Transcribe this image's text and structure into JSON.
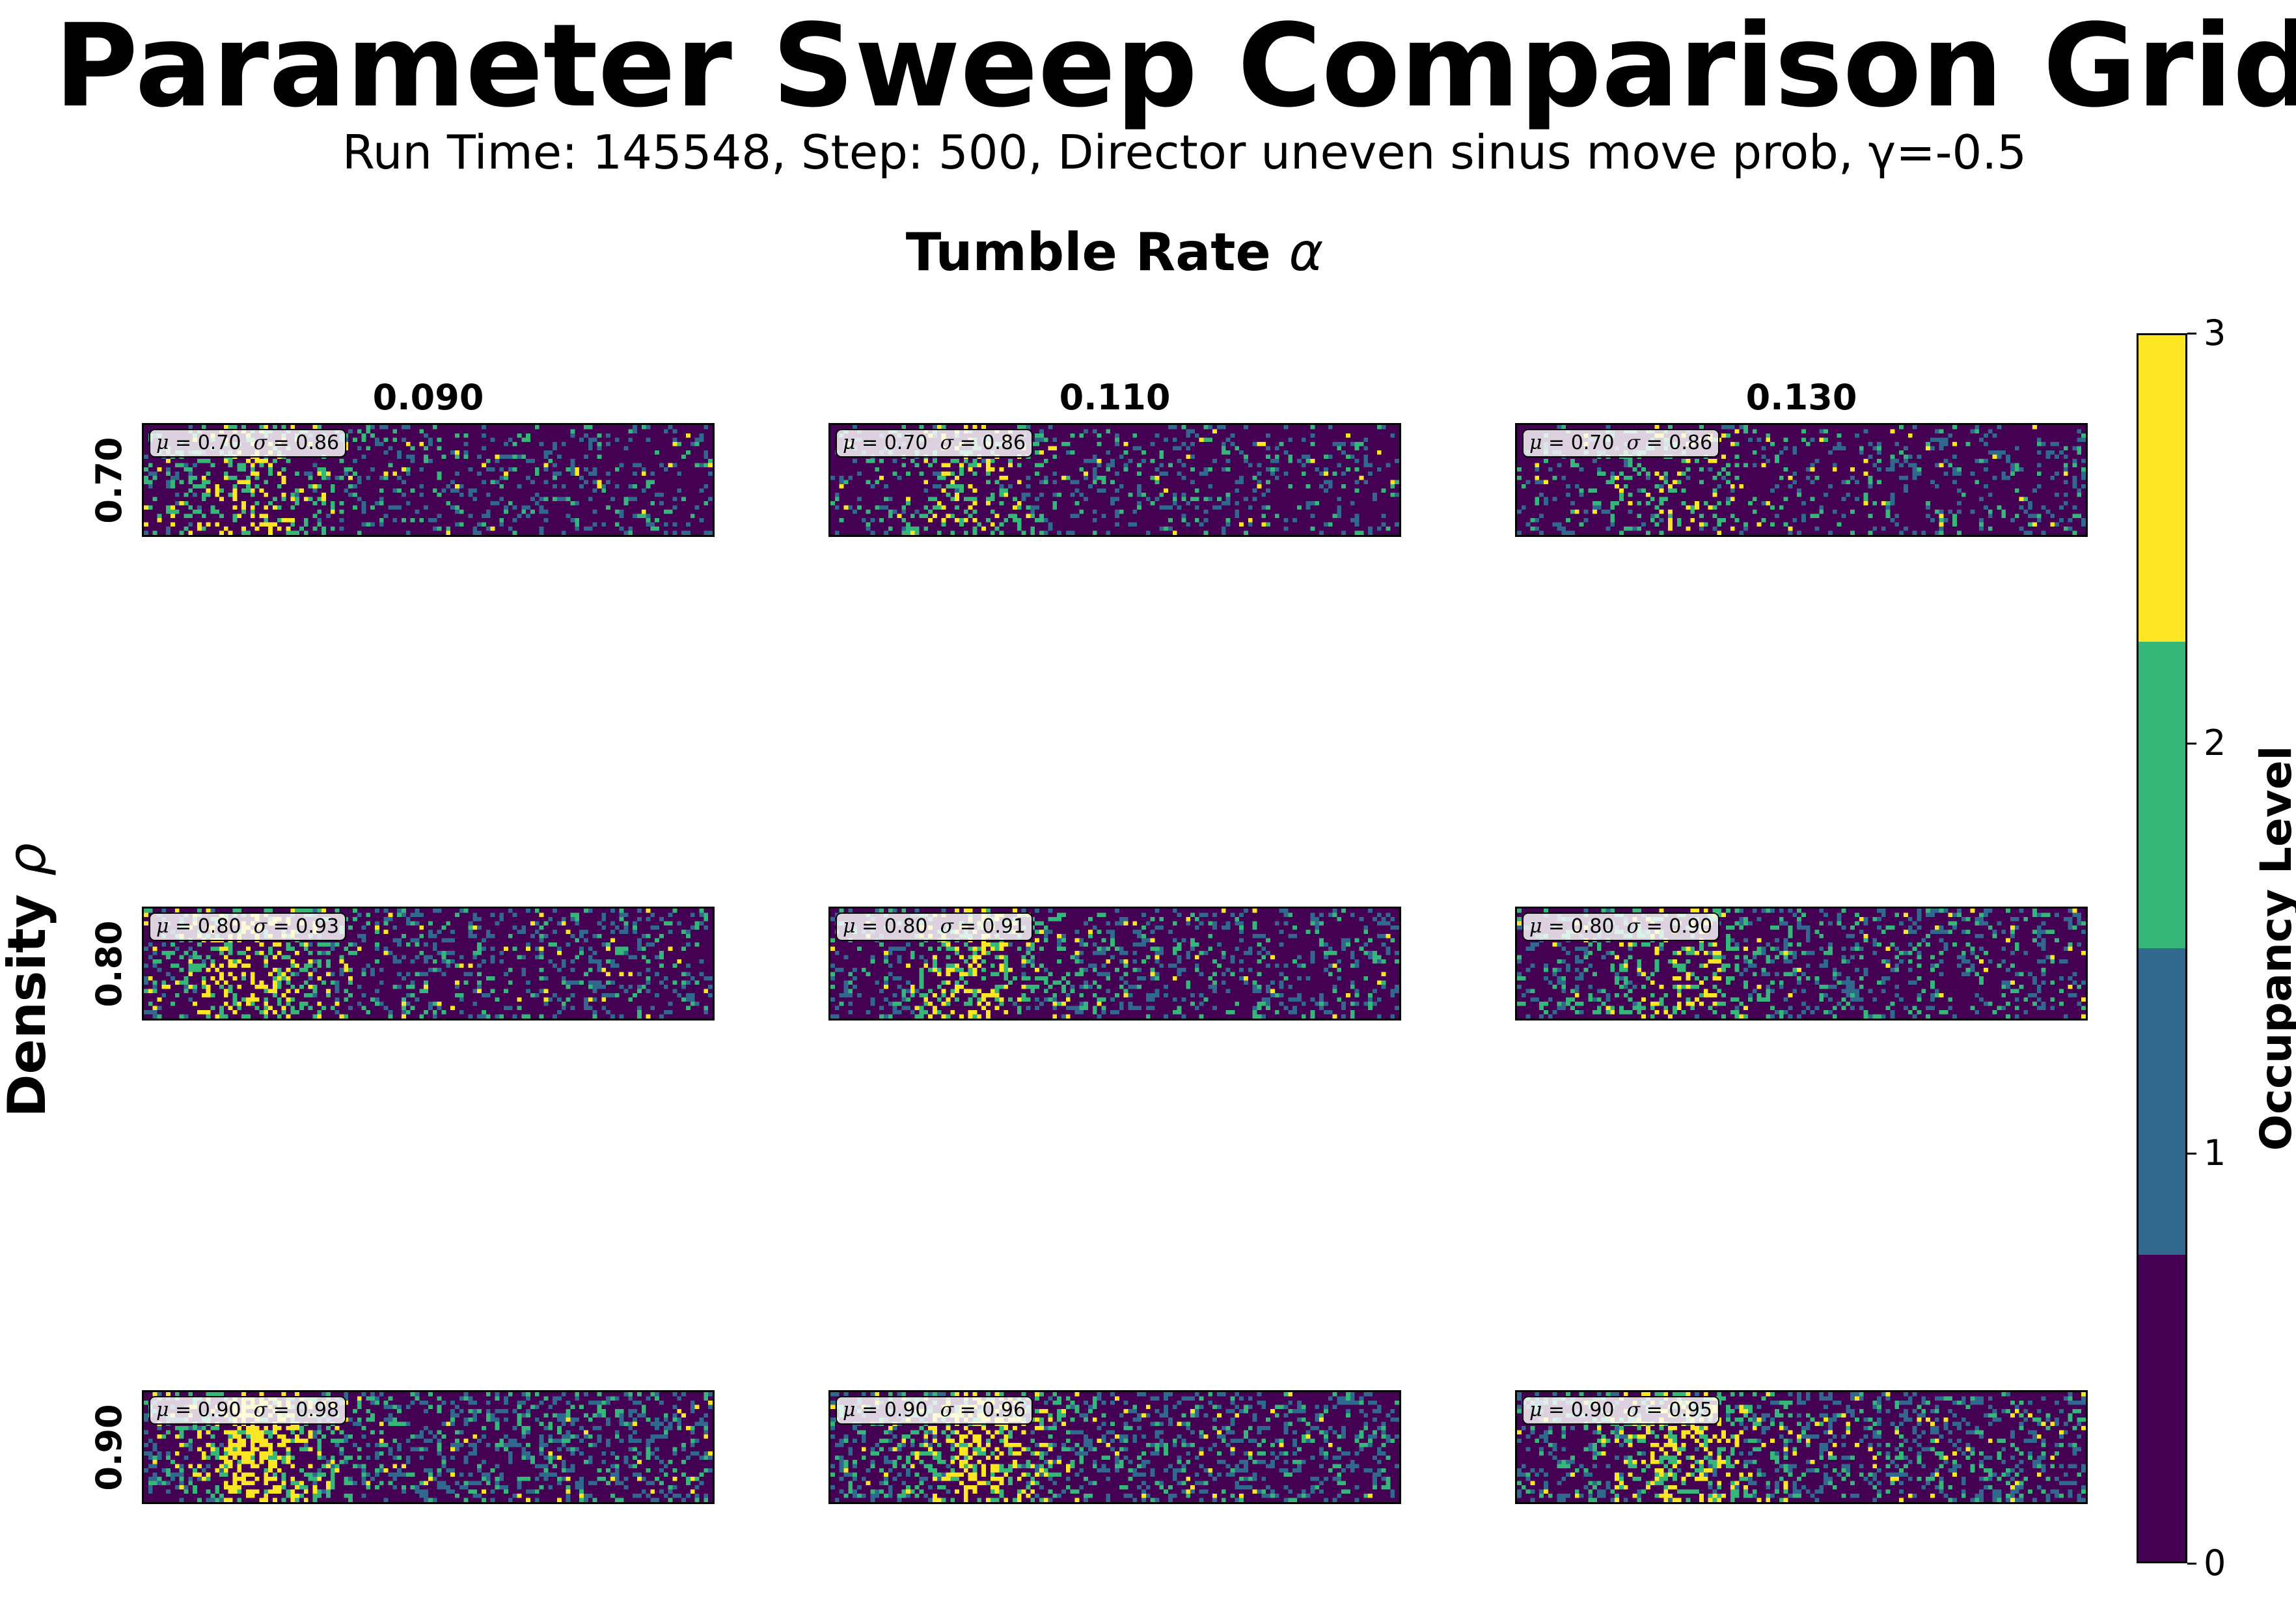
{
  "header": {
    "title": "Parameter Sweep Comparison Grid",
    "subtitle": "Run Time: 145548, Step: 500, Director uneven sinus move prob, γ=-0.5",
    "col_axis_text": "Tumble Rate ",
    "col_axis_symbol": "α",
    "row_axis_text": "Density ",
    "row_axis_symbol": "ρ"
  },
  "colorbar": {
    "label": "Occupancy Level",
    "ticks": [
      "0",
      "1",
      "2",
      "3"
    ],
    "colors": [
      "#440154",
      "#31688e",
      "#35b779",
      "#fde725"
    ]
  },
  "chart_data": {
    "type": "heatmap",
    "col_labels": [
      "0.090",
      "0.110",
      "0.130"
    ],
    "row_labels": [
      "0.70",
      "0.80",
      "0.90"
    ],
    "levels": [
      0,
      1,
      2,
      3
    ],
    "panels": [
      {
        "row": 0,
        "col": 0,
        "mu": "0.70",
        "sigma": "0.86"
      },
      {
        "row": 0,
        "col": 1,
        "mu": "0.70",
        "sigma": "0.86"
      },
      {
        "row": 0,
        "col": 2,
        "mu": "0.70",
        "sigma": "0.86"
      },
      {
        "row": 1,
        "col": 0,
        "mu": "0.80",
        "sigma": "0.93"
      },
      {
        "row": 1,
        "col": 1,
        "mu": "0.80",
        "sigma": "0.91"
      },
      {
        "row": 1,
        "col": 2,
        "mu": "0.80",
        "sigma": "0.90"
      },
      {
        "row": 2,
        "col": 0,
        "mu": "0.90",
        "sigma": "0.98"
      },
      {
        "row": 2,
        "col": 1,
        "mu": "0.90",
        "sigma": "0.96"
      },
      {
        "row": 2,
        "col": 2,
        "mu": "0.90",
        "sigma": "0.95"
      }
    ]
  }
}
